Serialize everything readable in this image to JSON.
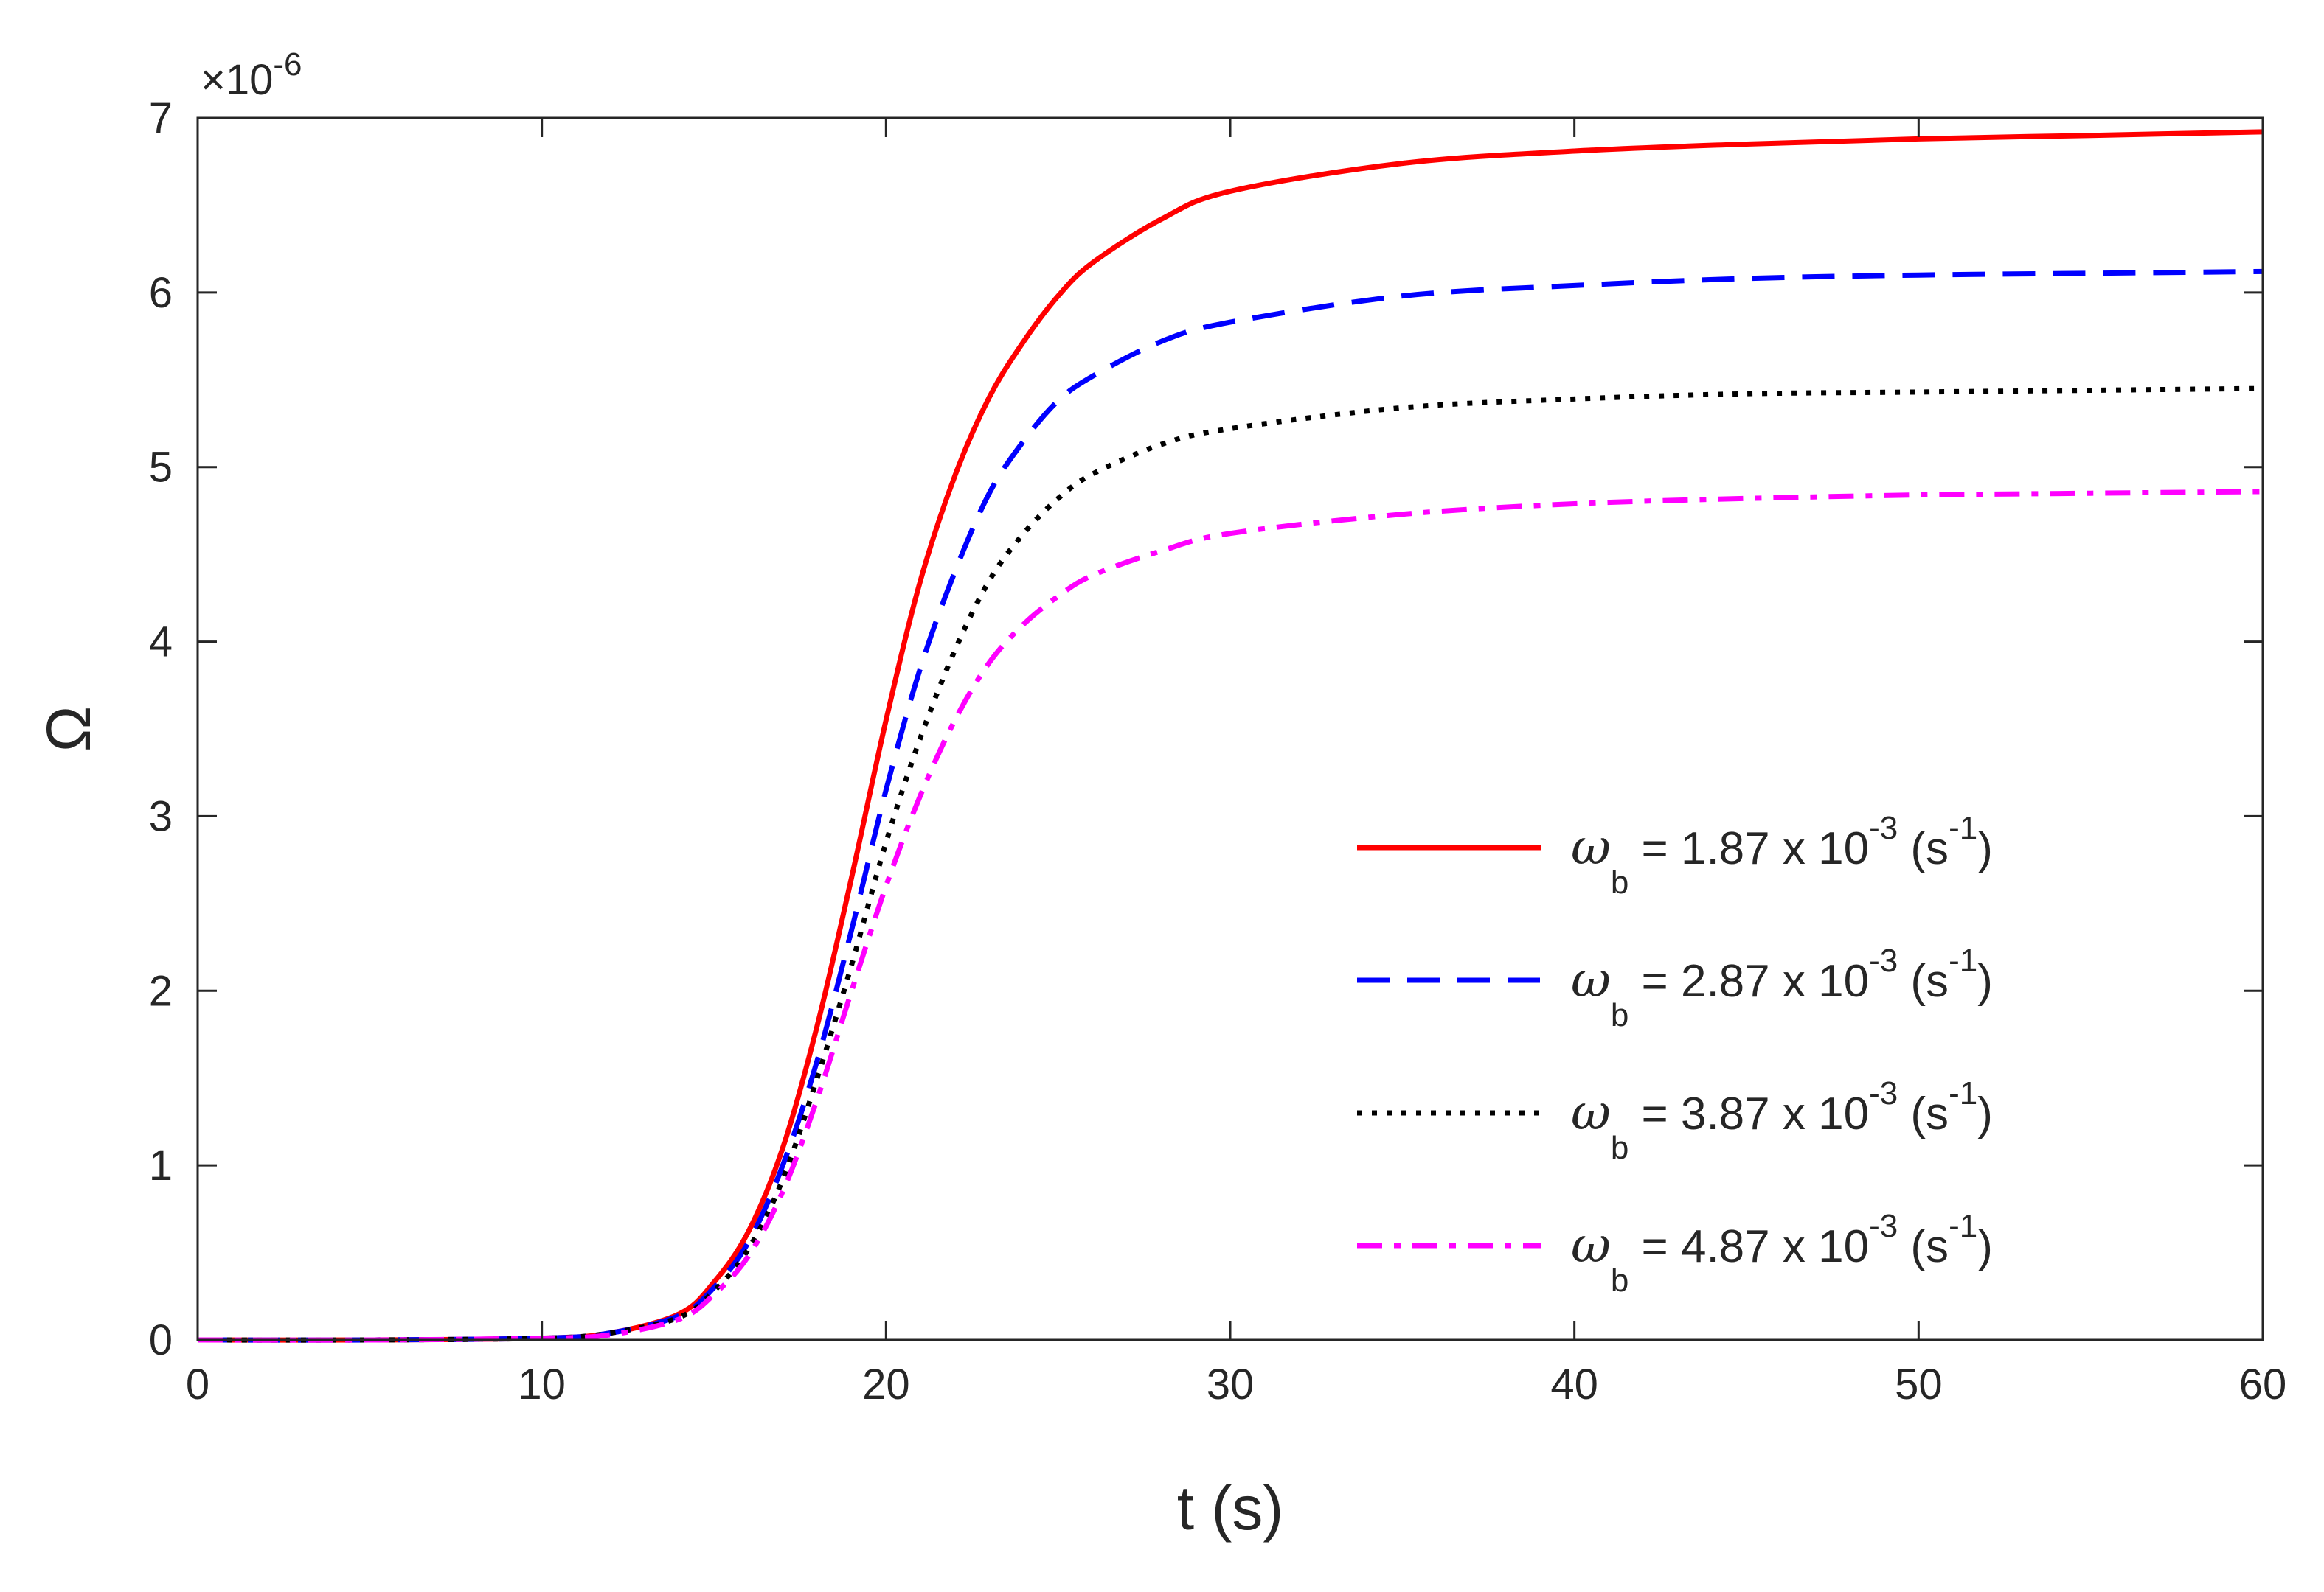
{
  "chart_data": {
    "type": "line",
    "title": "",
    "xlabel": "t (s)",
    "ylabel": "Ω",
    "xlim": [
      0,
      60
    ],
    "ylim": [
      0,
      7
    ],
    "y_scale_multiplier": {
      "base": "×10",
      "exponent": "-6"
    },
    "xticks": [
      "0",
      "10",
      "20",
      "30",
      "40",
      "50",
      "60"
    ],
    "yticks": [
      "0",
      "1",
      "2",
      "3",
      "4",
      "5",
      "6",
      "7"
    ],
    "grid": false,
    "legend_position": "right-middle",
    "x": [
      0,
      5,
      10,
      12,
      14,
      15,
      16,
      17,
      18,
      19,
      20,
      21,
      22,
      23,
      24,
      25,
      26,
      28,
      30,
      35,
      40,
      45,
      50,
      55,
      60
    ],
    "series": [
      {
        "name": "ω_b = 1.87 x 10^-3 (s^-1)",
        "legend": {
          "symbol": "ω",
          "sub": "b",
          "eq": " = 1.87 x 10",
          "exp": "-3",
          "unit_open": " (s",
          "unit_exp": "-1",
          "unit_close": ")"
        },
        "color": "#ff0000",
        "dash": "solid",
        "values": [
          0,
          0,
          0.01,
          0.04,
          0.15,
          0.33,
          0.62,
          1.1,
          1.8,
          2.65,
          3.55,
          4.35,
          4.95,
          5.4,
          5.72,
          5.98,
          6.17,
          6.42,
          6.58,
          6.74,
          6.81,
          6.85,
          6.88,
          6.9,
          6.92
        ]
      },
      {
        "name": "ω_b = 2.87 x 10^-3 (s^-1)",
        "legend": {
          "symbol": "ω",
          "sub": "b",
          "eq": " = 2.87 x 10",
          "exp": "-3",
          "unit_open": " (s",
          "unit_exp": "-1",
          "unit_close": ")"
        },
        "color": "#0000ff",
        "dash": "long-dash",
        "values": [
          0,
          0,
          0.01,
          0.04,
          0.14,
          0.3,
          0.56,
          1.0,
          1.6,
          2.35,
          3.15,
          3.85,
          4.4,
          4.85,
          5.15,
          5.38,
          5.52,
          5.72,
          5.83,
          5.98,
          6.04,
          6.08,
          6.1,
          6.11,
          6.12
        ]
      },
      {
        "name": "ω_b = 3.87 x 10^-3 (s^-1)",
        "legend": {
          "symbol": "ω",
          "sub": "b",
          "eq": " = 3.87 x 10",
          "exp": "-3",
          "unit_open": " (s",
          "unit_exp": "-1",
          "unit_close": ")"
        },
        "color": "#000000",
        "dash": "dotted",
        "values": [
          0,
          0,
          0.01,
          0.04,
          0.13,
          0.28,
          0.52,
          0.92,
          1.5,
          2.15,
          2.85,
          3.45,
          3.95,
          4.35,
          4.62,
          4.82,
          4.96,
          5.13,
          5.22,
          5.34,
          5.39,
          5.42,
          5.43,
          5.44,
          5.45
        ]
      },
      {
        "name": "ω_b = 4.87 x 10^-3 (s^-1)",
        "legend": {
          "symbol": "ω",
          "sub": "b",
          "eq": " = 4.87 x 10",
          "exp": "-3",
          "unit_open": " (s",
          "unit_exp": "-1",
          "unit_close": ")"
        },
        "color": "#ff00ff",
        "dash": "dash-dot",
        "values": [
          0,
          0,
          0.01,
          0.03,
          0.12,
          0.26,
          0.48,
          0.85,
          1.38,
          2.0,
          2.6,
          3.12,
          3.55,
          3.88,
          4.1,
          4.26,
          4.38,
          4.52,
          4.62,
          4.73,
          4.79,
          4.82,
          4.84,
          4.85,
          4.86
        ]
      }
    ]
  }
}
